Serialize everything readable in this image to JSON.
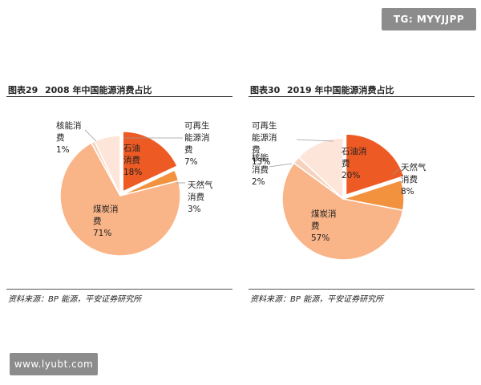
{
  "watermarks": {
    "top": "TG: MYYJJPP",
    "bottom": "www.lyubt.com"
  },
  "colors": {
    "oil": "#ed5a24",
    "gas": "#f2913e",
    "coal": "#f9b488",
    "nuclear": "#f7d3bd",
    "renewable": "#fde6d9"
  },
  "chart_data": [
    {
      "type": "pie",
      "figure_number": "图表29",
      "title": "2008 年中国能源消费占比",
      "source": "资料来源：BP 能源，平安证券研究所",
      "slices": [
        {
          "name": "石油消费",
          "value": 18,
          "label": "18%",
          "color_key": "oil",
          "label_lines": [
            "石油",
            "消费",
            "18%"
          ]
        },
        {
          "name": "天然气消费",
          "value": 3,
          "label": "3%",
          "color_key": "gas",
          "label_lines": [
            "天然气",
            "消费",
            "3%"
          ]
        },
        {
          "name": "煤炭消费",
          "value": 71,
          "label": "71%",
          "color_key": "coal",
          "label_lines": [
            "煤炭消",
            "费",
            "71%"
          ]
        },
        {
          "name": "核能消费",
          "value": 1,
          "label": "1%",
          "color_key": "nuclear",
          "label_lines": [
            "核能消",
            "费",
            "1%"
          ]
        },
        {
          "name": "可再生能源消费",
          "value": 7,
          "label": "7%",
          "color_key": "renewable",
          "label_lines": [
            "可再生",
            "能源消",
            "费",
            "7%"
          ]
        }
      ]
    },
    {
      "type": "pie",
      "figure_number": "图表30",
      "title": "2019 年中国能源消费占比",
      "source": "资料来源：BP 能源，平安证券研究所",
      "slices": [
        {
          "name": "石油消费",
          "value": 20,
          "label": "20%",
          "color_key": "oil",
          "label_lines": [
            "石油消",
            "费",
            "20%"
          ]
        },
        {
          "name": "天然气消费",
          "value": 8,
          "label": "8%",
          "color_key": "gas",
          "label_lines": [
            "天然气",
            "消费",
            "8%"
          ]
        },
        {
          "name": "煤炭消费",
          "value": 57,
          "label": "57%",
          "color_key": "coal",
          "label_lines": [
            "煤炭消",
            "费",
            "57%"
          ]
        },
        {
          "name": "核能消费",
          "value": 2,
          "label": "2%",
          "color_key": "nuclear",
          "label_lines": [
            "核能",
            "消费",
            "2%"
          ]
        },
        {
          "name": "可再生能源消费",
          "value": 13,
          "label": "13%",
          "color_key": "renewable",
          "label_lines": [
            "可再生",
            "能源消",
            "费",
            "13%"
          ]
        }
      ]
    }
  ]
}
